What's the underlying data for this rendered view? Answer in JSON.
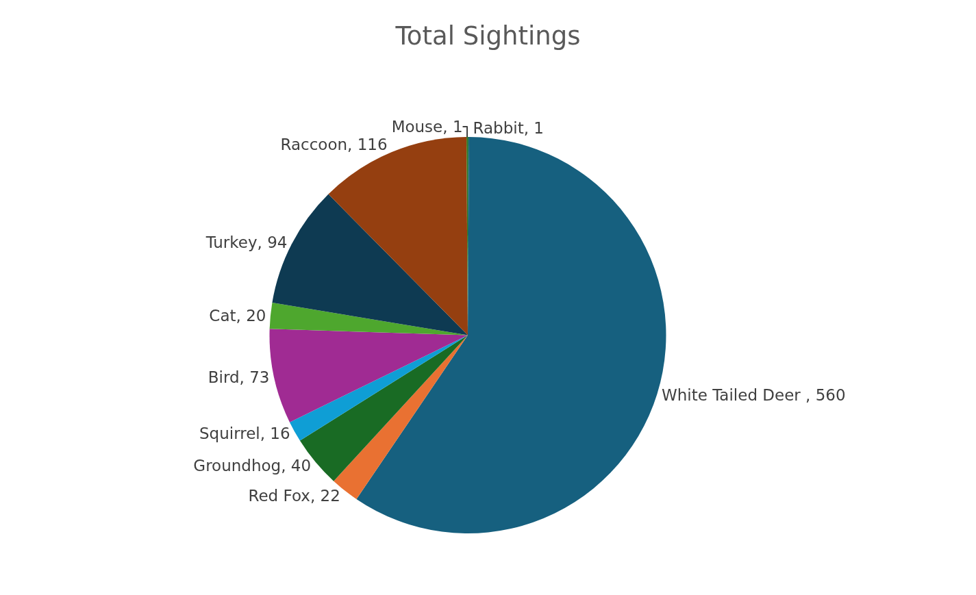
{
  "chart_data": {
    "type": "pie",
    "title": "Total Sightings",
    "categories": [
      "Rabbit",
      "White Tailed Deer ",
      "Red Fox",
      "Groundhog",
      "Squirrel",
      "Bird",
      "Cat",
      "Turkey",
      "Raccoon",
      "Mouse"
    ],
    "values": [
      1,
      560,
      22,
      40,
      16,
      73,
      20,
      94,
      116,
      1
    ],
    "colors": [
      "#1a6b5a",
      "#16607f",
      "#e97132",
      "#196b24",
      "#0f9ed5",
      "#a02b93",
      "#4ea72e",
      "#0e3a52",
      "#953f10",
      "#3b7d23"
    ],
    "value_labels": [
      ", 1",
      ", 560",
      ", 22",
      ", 40",
      ", 16",
      ", 73",
      ", 20",
      ", 94",
      ", 116",
      ", 1"
    ],
    "legend": false
  }
}
